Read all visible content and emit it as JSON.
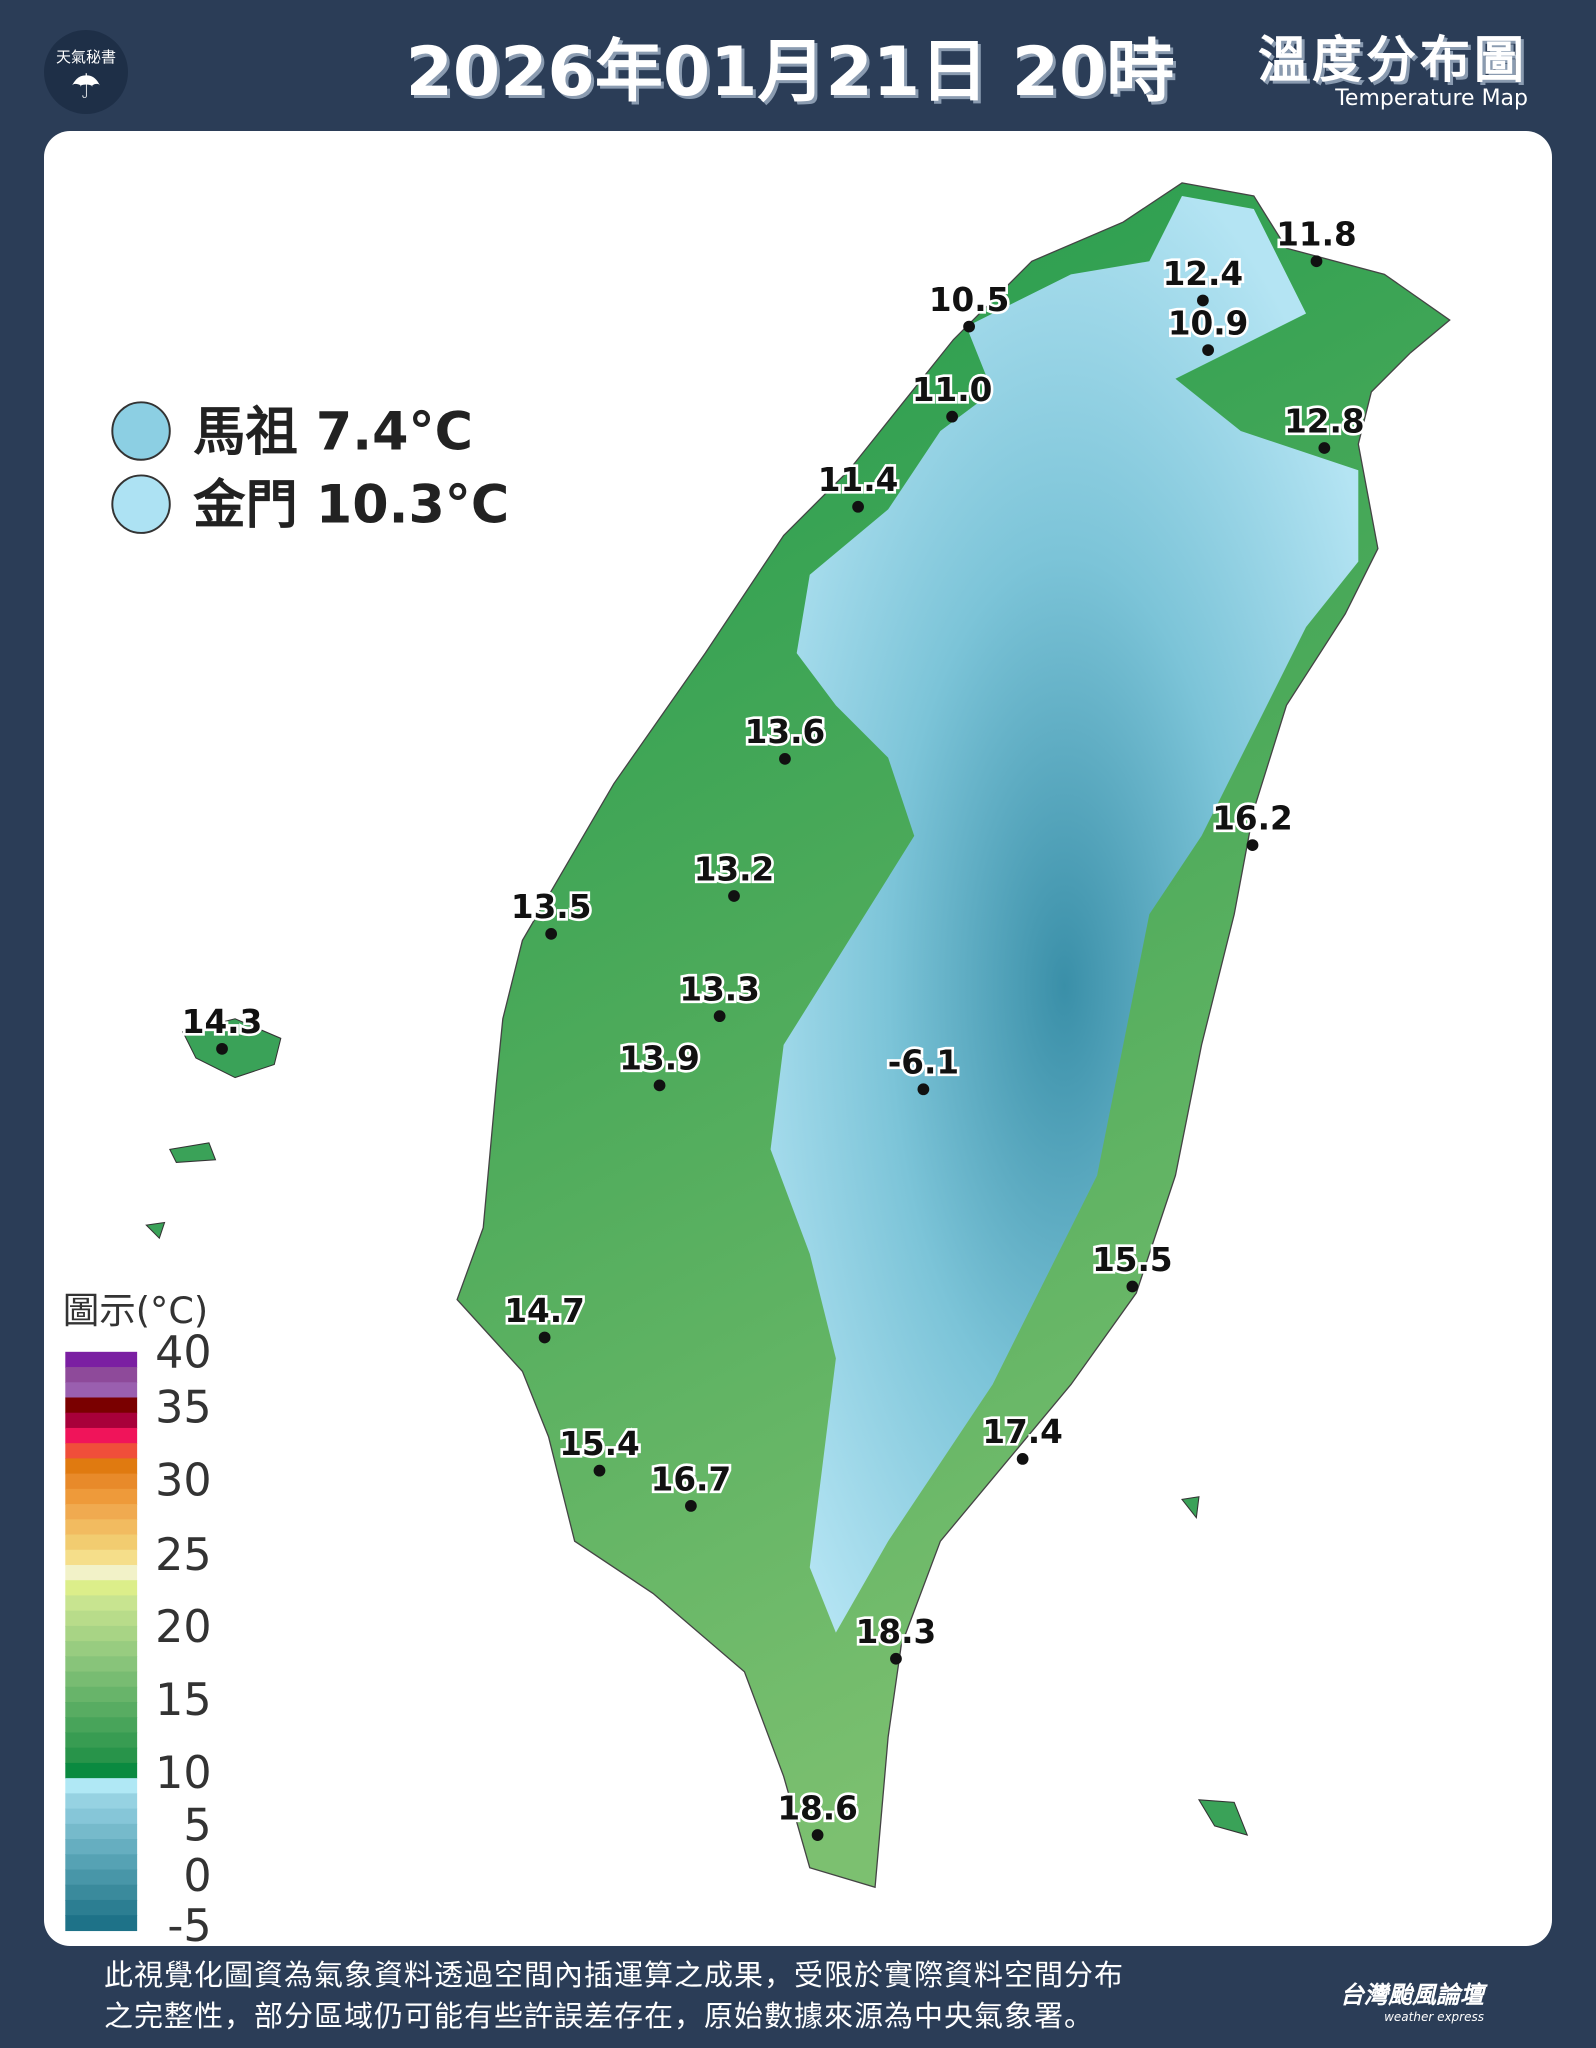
{
  "header": {
    "title": "2026年01月21日 20時",
    "subtitle": "溫度分布圖",
    "subtitle_en": "Temperature Map",
    "logo_text": "天氣秘書",
    "logo_icon": "umbrella-icon"
  },
  "islands": [
    {
      "label": "馬祖 7.4°C",
      "color": "#8ccfe3"
    },
    {
      "label": "金門 10.3°C",
      "color": "#ade2f3"
    }
  ],
  "stations": [
    {
      "value": "11.8"
    },
    {
      "value": "12.4"
    },
    {
      "value": "10.9"
    },
    {
      "value": "10.5"
    },
    {
      "value": "11.0"
    },
    {
      "value": "12.8"
    },
    {
      "value": "11.4"
    },
    {
      "value": "13.6"
    },
    {
      "value": "16.2"
    },
    {
      "value": "13.2"
    },
    {
      "value": "13.5"
    },
    {
      "value": "13.3"
    },
    {
      "value": "14.3"
    },
    {
      "value": "13.9"
    },
    {
      "value": "-6.1"
    },
    {
      "value": "15.5"
    },
    {
      "value": "14.7"
    },
    {
      "value": "17.4"
    },
    {
      "value": "15.4"
    },
    {
      "value": "16.7"
    },
    {
      "value": "18.3"
    },
    {
      "value": "18.6"
    }
  ],
  "legend": {
    "title": "圖示(°C)",
    "ticks": [
      "40",
      "35",
      "30",
      "25",
      "20",
      "15",
      "10",
      "5",
      "0",
      "-5"
    ],
    "colors": [
      "#7b1fa2",
      "#8e4a9a",
      "#9a5faf",
      "#7a0000",
      "#a8003a",
      "#f0145a",
      "#f04e3a",
      "#e07a10",
      "#e88a2a",
      "#ee9a3a",
      "#f0aa50",
      "#f2bb60",
      "#f2cc70",
      "#f5de8a",
      "#f2f2c8",
      "#dcee8a",
      "#c8e490",
      "#b8dc8a",
      "#a8d485",
      "#98cc80",
      "#88c47a",
      "#78bc72",
      "#68b46a",
      "#58ac62",
      "#48a45a",
      "#389c52",
      "#28944a",
      "#0a8a40",
      "#b0e8f5",
      "#96d2e2",
      "#86c6d8",
      "#76bacb",
      "#66aec0",
      "#56a2b4",
      "#4896a8",
      "#3a8a9c",
      "#2c7e92",
      "#1e7288"
    ]
  },
  "footer": {
    "line1": "此視覺化圖資為氣象資料透過空間內插運算之成果，受限於實際資料空間分布",
    "line2": "之完整性，部分區域仍可能有些許誤差存在，原始數據來源為中央氣象署。",
    "brand": "台灣颱風論壇",
    "brand_en": "weather express"
  }
}
